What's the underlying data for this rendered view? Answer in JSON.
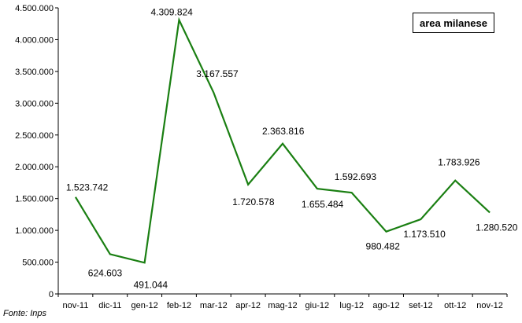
{
  "chart_data": {
    "type": "line",
    "categories": [
      "nov-11",
      "dic-11",
      "gen-12",
      "feb-12",
      "mar-12",
      "apr-12",
      "mag-12",
      "giu-12",
      "lug-12",
      "ago-12",
      "set-12",
      "ott-12",
      "nov-12"
    ],
    "series": [
      {
        "name": "area milanese",
        "values": [
          1523742,
          624603,
          491044,
          4309824,
          3167557,
          1720578,
          2363816,
          1655484,
          1592693,
          980482,
          1173510,
          1783926,
          1280520
        ],
        "labels": [
          "1.523.742",
          "624.603",
          "491.044",
          "4.309.824",
          "3.167.557",
          "1.720.578",
          "2.363.816",
          "1.655.484",
          "1.592.693",
          "980.482",
          "1.173.510",
          "1.783.926",
          "1.280.520"
        ],
        "color": "#1a7f12"
      }
    ],
    "ylim": [
      0,
      4500000
    ],
    "yticks": [
      0,
      500000,
      1000000,
      1500000,
      2000000,
      2500000,
      3000000,
      3500000,
      4000000,
      4500000
    ],
    "ytick_labels": [
      "0",
      "500.000",
      "1.000.000",
      "1.500.000",
      "2.000.000",
      "2.500.000",
      "3.000.000",
      "3.500.000",
      "4.000.000",
      "4.500.000"
    ],
    "legend_text": "area milanese",
    "legend_position": "top-right",
    "grid": false
  },
  "source_note": "Fonte: Inps"
}
